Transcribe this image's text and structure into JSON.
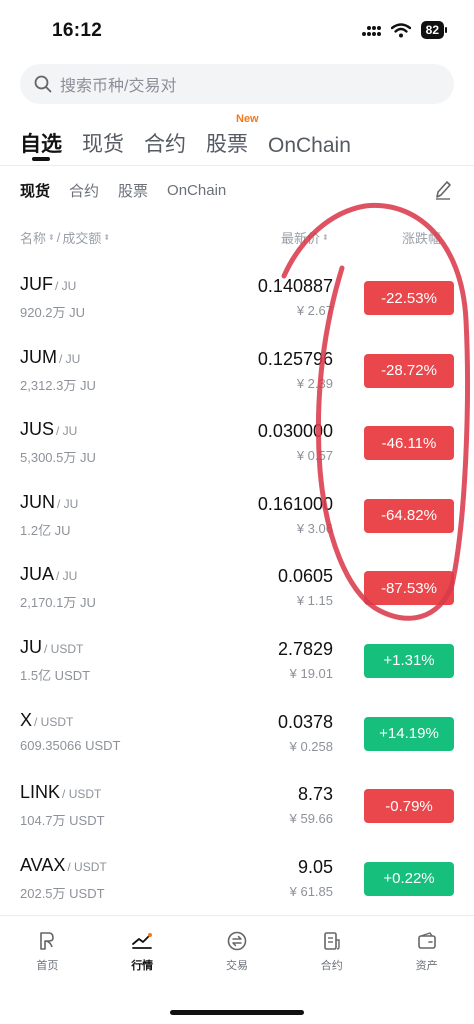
{
  "status": {
    "time": "16:12",
    "battery": "82"
  },
  "search": {
    "placeholder": "搜索币种/交易对"
  },
  "main_tabs": [
    {
      "label": "自选"
    },
    {
      "label": "现货"
    },
    {
      "label": "合约"
    },
    {
      "label": "股票",
      "badge": "New"
    },
    {
      "label": "OnChain"
    }
  ],
  "sub_tabs": [
    {
      "label": "现货"
    },
    {
      "label": "合约"
    },
    {
      "label": "股票"
    },
    {
      "label": "OnChain"
    }
  ],
  "columns": {
    "name": "名称",
    "slash": "/",
    "volume": "成交额",
    "price": "最新价",
    "change": "涨跌幅"
  },
  "colors": {
    "down": "#e9474b",
    "up": "#16bf7c",
    "annotation": "#d93a4b"
  },
  "rows": [
    {
      "symbol": "JUF",
      "quote": "/ JU",
      "volume": "920.2万 JU",
      "price": "0.140887",
      "cny": "¥ 2.67",
      "change": "-22.53%",
      "direction": "down"
    },
    {
      "symbol": "JUM",
      "quote": "/ JU",
      "volume": "2,312.3万 JU",
      "price": "0.125796",
      "cny": "¥ 2.39",
      "change": "-28.72%",
      "direction": "down"
    },
    {
      "symbol": "JUS",
      "quote": "/ JU",
      "volume": "5,300.5万 JU",
      "price": "0.030000",
      "cny": "¥ 0.57",
      "change": "-46.11%",
      "direction": "down"
    },
    {
      "symbol": "JUN",
      "quote": "/ JU",
      "volume": "1.2亿 JU",
      "price": "0.161000",
      "cny": "¥ 3.06",
      "change": "-64.82%",
      "direction": "down"
    },
    {
      "symbol": "JUA",
      "quote": "/ JU",
      "volume": "2,170.1万 JU",
      "price": "0.0605",
      "cny": "¥ 1.15",
      "change": "-87.53%",
      "direction": "down"
    },
    {
      "symbol": "JU",
      "quote": "/ USDT",
      "volume": "1.5亿 USDT",
      "price": "2.7829",
      "cny": "¥ 19.01",
      "change": "+1.31%",
      "direction": "up"
    },
    {
      "symbol": "X",
      "quote": "/ USDT",
      "volume": "609.35066 USDT",
      "price": "0.0378",
      "cny": "¥ 0.258",
      "change": "+14.19%",
      "direction": "up"
    },
    {
      "symbol": "LINK",
      "quote": "/ USDT",
      "volume": "104.7万 USDT",
      "price": "8.73",
      "cny": "¥ 59.66",
      "change": "-0.79%",
      "direction": "down"
    },
    {
      "symbol": "AVAX",
      "quote": "/ USDT",
      "volume": "202.5万 USDT",
      "price": "9.05",
      "cny": "¥ 61.85",
      "change": "+0.22%",
      "direction": "up"
    }
  ],
  "bottom_nav": [
    {
      "label": "首页",
      "icon": "home-icon"
    },
    {
      "label": "行情",
      "icon": "market-chart-icon"
    },
    {
      "label": "交易",
      "icon": "trade-icon"
    },
    {
      "label": "合约",
      "icon": "contract-icon"
    },
    {
      "label": "资产",
      "icon": "wallet-icon"
    }
  ]
}
